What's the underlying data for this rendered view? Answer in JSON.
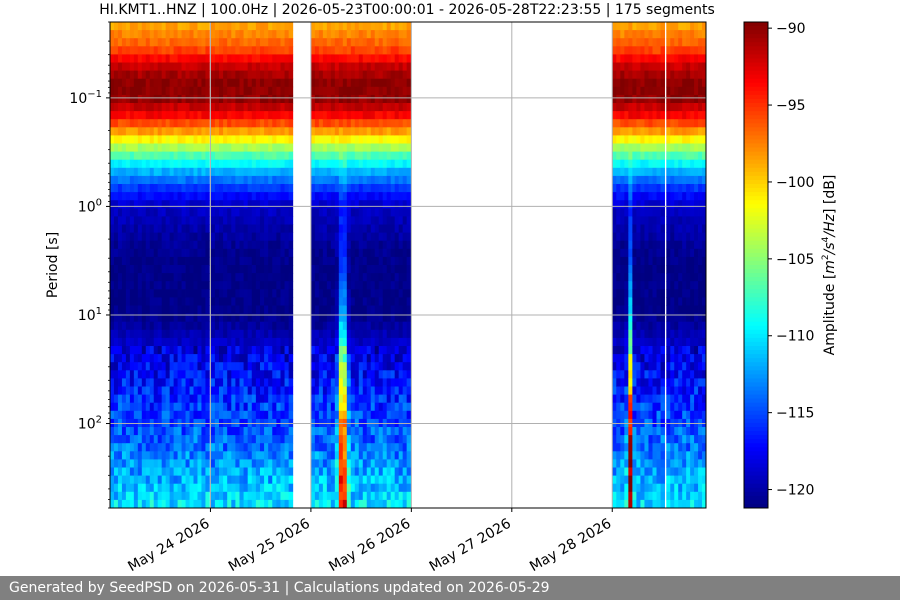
{
  "chart_data": {
    "type": "heatmap",
    "title": "HI.KMT1..HNZ | 100.0Hz | 2026-05-23T00:00:01 - 2026-05-28T22:23:55 | 175 segments",
    "ylabel": "Period [s]",
    "y_scale": "log",
    "y_inverted": true,
    "ylim": [
      0.02,
      600
    ],
    "y_ticks": [
      {
        "value": 0.1,
        "label_base": "10",
        "label_exp": "−1"
      },
      {
        "value": 1,
        "label_base": "10",
        "label_exp": "0"
      },
      {
        "value": 10,
        "label_base": "10",
        "label_exp": "1"
      },
      {
        "value": 100,
        "label_base": "10",
        "label_exp": "2"
      }
    ],
    "x_ticks": [
      {
        "value": "2026-05-24",
        "label": "May 24 2026"
      },
      {
        "value": "2026-05-25",
        "label": "May 25 2026"
      },
      {
        "value": "2026-05-26",
        "label": "May 26 2026"
      },
      {
        "value": "2026-05-27",
        "label": "May 27 2026"
      },
      {
        "value": "2026-05-28",
        "label": "May 28 2026"
      }
    ],
    "xlim": [
      "2026-05-23T00:00:01",
      "2026-05-28T22:23:55"
    ],
    "grid": true,
    "colormap": "jet",
    "colorbar": {
      "label_prefix": "Amplitude [",
      "label_unit_a": "m",
      "label_unit_a_exp": "2",
      "label_unit_b": "/s",
      "label_unit_b_exp": "4",
      "label_unit_c": "/Hz",
      "label_suffix": "] [dB]",
      "min": -121.2,
      "max": -89.6,
      "ticks": [
        {
          "value": -90,
          "label": "−90"
        },
        {
          "value": -95,
          "label": "−95"
        },
        {
          "value": -100,
          "label": "−100"
        },
        {
          "value": -105,
          "label": "−105"
        },
        {
          "value": -110,
          "label": "−110"
        },
        {
          "value": -115,
          "label": "−115"
        },
        {
          "value": -120,
          "label": "−120"
        }
      ]
    },
    "data_segments": [
      {
        "start": "2026-05-23T00:00:01",
        "end": "2026-05-23T23:45:00",
        "event": false
      },
      {
        "start": "2026-05-24T00:05:00",
        "end": "2026-05-24T19:40:00",
        "event": false
      },
      {
        "start": "2026-05-25T00:00:00",
        "end": "2026-05-25T23:50:00",
        "event": true
      },
      {
        "start": "2026-05-28T00:00:00",
        "end": "2026-05-28T12:30:00",
        "event": true
      },
      {
        "start": "2026-05-28T12:55:00",
        "end": "2026-05-28T22:23:55",
        "event": false
      }
    ],
    "psd_profile": [
      {
        "period": 0.02,
        "db": -99
      },
      {
        "period": 0.035,
        "db": -96
      },
      {
        "period": 0.05,
        "db": -92
      },
      {
        "period": 0.07,
        "db": -90
      },
      {
        "period": 0.1,
        "db": -90
      },
      {
        "period": 0.14,
        "db": -93
      },
      {
        "period": 0.2,
        "db": -98
      },
      {
        "period": 0.3,
        "db": -105
      },
      {
        "period": 0.45,
        "db": -111
      },
      {
        "period": 0.7,
        "db": -116
      },
      {
        "period": 1.0,
        "db": -119
      },
      {
        "period": 3,
        "db": -121
      },
      {
        "period": 10,
        "db": -121
      },
      {
        "period": 25,
        "db": -118
      },
      {
        "period": 60,
        "db": -116
      },
      {
        "period": 150,
        "db": -114
      },
      {
        "period": 300,
        "db": -112
      },
      {
        "period": 600,
        "db": -110
      }
    ]
  },
  "footer": {
    "text": "Generated by SeedPSD on 2026-05-31 | Calculations updated on 2026-05-29"
  }
}
